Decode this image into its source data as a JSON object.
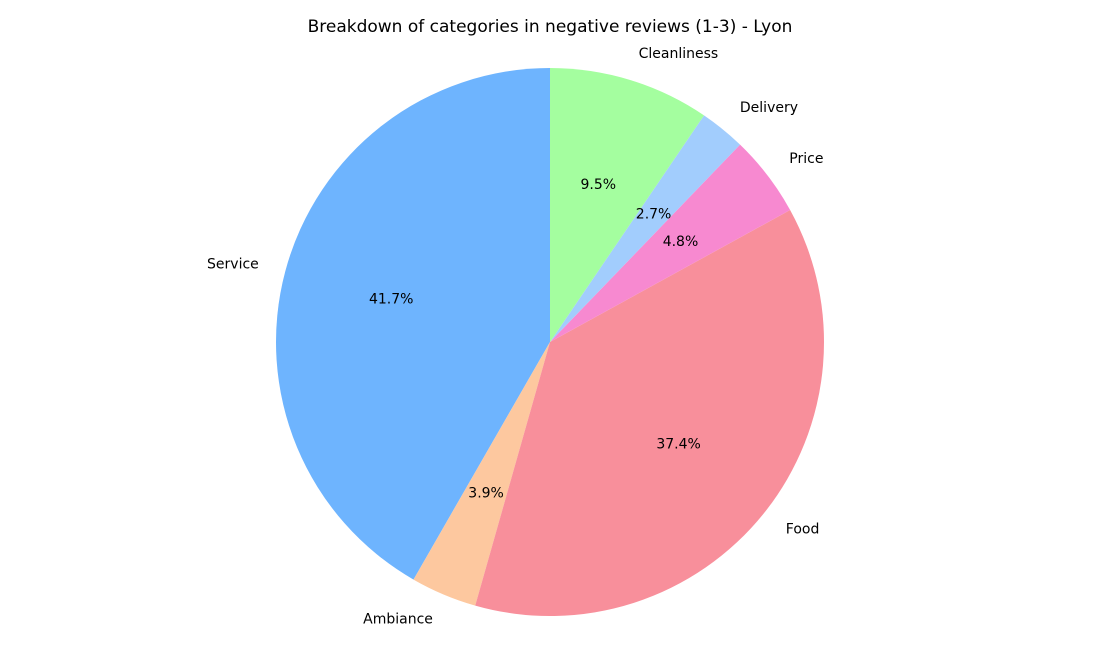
{
  "chart_data": {
    "type": "pie",
    "title": "Breakdown of categories in negative reviews (1-3) - Lyon",
    "start_angle_deg": 90,
    "direction": "counterclockwise",
    "slices": [
      {
        "label": "Service",
        "value": 41.7,
        "pct_label": "41.7%",
        "color": "#6eb4fe"
      },
      {
        "label": "Ambiance",
        "value": 3.9,
        "pct_label": "3.9%",
        "color": "#fdc89f"
      },
      {
        "label": "Food",
        "value": 37.4,
        "pct_label": "37.4%",
        "color": "#f88f9b"
      },
      {
        "label": "Price",
        "value": 4.8,
        "pct_label": "4.8%",
        "color": "#f789d0"
      },
      {
        "label": "Delivery",
        "value": 2.7,
        "pct_label": "2.7%",
        "color": "#a2cdfd"
      },
      {
        "label": "Cleanliness",
        "value": 9.5,
        "pct_label": "9.5%",
        "color": "#a4fe9f"
      }
    ]
  }
}
